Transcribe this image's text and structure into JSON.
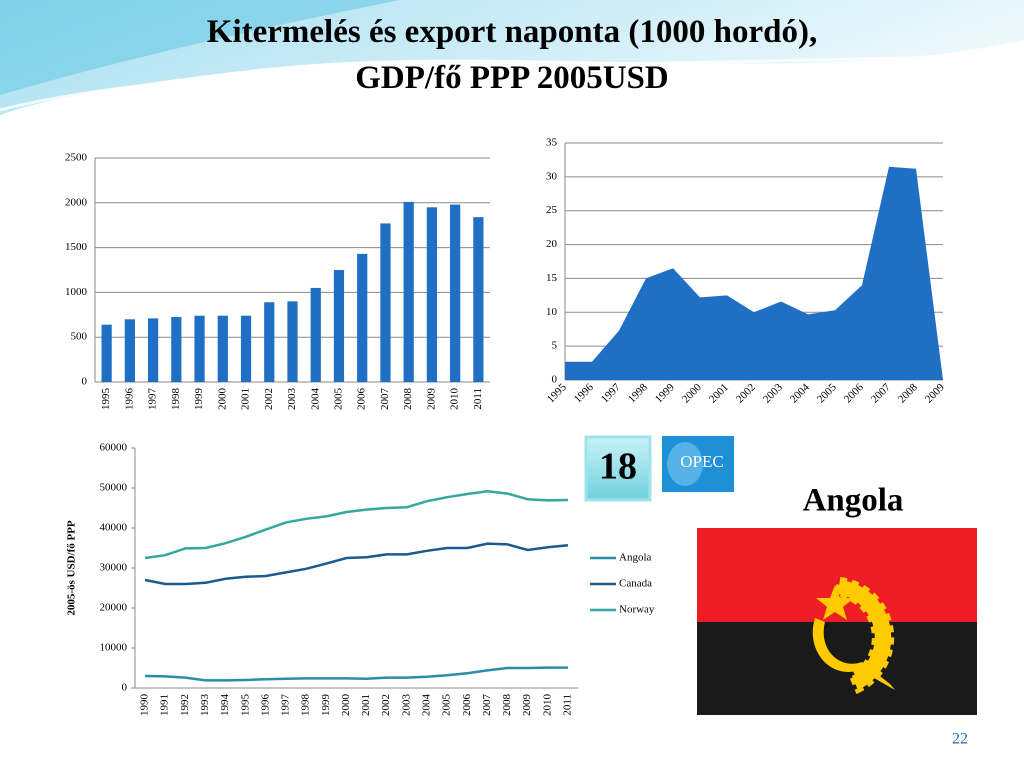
{
  "slide": {
    "title_line1": "Kitermelés és export naponta (1000 hordó),",
    "title_line2": "GDP/fő PPP 2005USD",
    "badge": "18",
    "logo": "OPEC",
    "country": "Angola",
    "page_number": "22"
  },
  "chart_data": [
    {
      "type": "bar",
      "categories": [
        "1995",
        "1996",
        "1997",
        "1998",
        "1999",
        "2000",
        "2001",
        "2002",
        "2003",
        "2004",
        "2005",
        "2006",
        "2007",
        "2008",
        "2009",
        "2010",
        "2011"
      ],
      "values": [
        640,
        700,
        710,
        725,
        740,
        740,
        740,
        890,
        900,
        1050,
        1250,
        1430,
        1770,
        2010,
        1950,
        1980,
        1840
      ],
      "color": "#1f6fc4",
      "ylim": [
        0,
        2500
      ],
      "yticks": [
        0,
        500,
        1000,
        1500,
        2000,
        2500
      ],
      "grid": true
    },
    {
      "type": "area",
      "categories": [
        "1995",
        "1996",
        "1997",
        "1998",
        "1999",
        "2000",
        "2001",
        "2002",
        "2003",
        "2004",
        "2005",
        "2006",
        "2007",
        "2008",
        "2009"
      ],
      "values": [
        2.7,
        2.7,
        7.3,
        15,
        16.5,
        12.2,
        12.5,
        10,
        11.6,
        9.7,
        10.3,
        14,
        31.5,
        31.2,
        0
      ],
      "color": "#1f6fc4",
      "ylim": [
        0,
        35
      ],
      "yticks": [
        0,
        5,
        10,
        15,
        20,
        25,
        30,
        35
      ],
      "grid": true
    },
    {
      "type": "line",
      "y_label": "2005-ös USD/fő PPP",
      "categories": [
        "1990",
        "1991",
        "1992",
        "1993",
        "1994",
        "1995",
        "1996",
        "1997",
        "1998",
        "1999",
        "2000",
        "2001",
        "2002",
        "2003",
        "2004",
        "2005",
        "2006",
        "2007",
        "2008",
        "2009",
        "2010",
        "2011"
      ],
      "series": [
        {
          "name": "Angola",
          "color": "#2a8fa6",
          "values": [
            3000,
            2900,
            2600,
            1900,
            1900,
            2000,
            2200,
            2300,
            2400,
            2400,
            2400,
            2300,
            2600,
            2600,
            2800,
            3200,
            3700,
            4400,
            5000,
            5000,
            5100,
            5100
          ]
        },
        {
          "name": "Canada",
          "color": "#1a5a8c",
          "values": [
            27000,
            26000,
            26000,
            26300,
            27300,
            27800,
            28000,
            28900,
            29800,
            31100,
            32500,
            32700,
            33400,
            33400,
            34300,
            35000,
            35000,
            36100,
            35900,
            34500,
            35200,
            35700
          ]
        },
        {
          "name": "Norway",
          "color": "#35a6a0",
          "values": [
            32500,
            33200,
            34900,
            35000,
            36200,
            37800,
            39600,
            41400,
            42300,
            42900,
            44000,
            44600,
            45000,
            45200,
            46700,
            47700,
            48500,
            49200,
            48600,
            47200,
            46900,
            47000
          ]
        }
      ],
      "ylim": [
        0,
        60000
      ],
      "yticks": [
        0,
        10000,
        20000,
        30000,
        40000,
        50000,
        60000
      ],
      "grid": false,
      "legend": "right"
    }
  ]
}
